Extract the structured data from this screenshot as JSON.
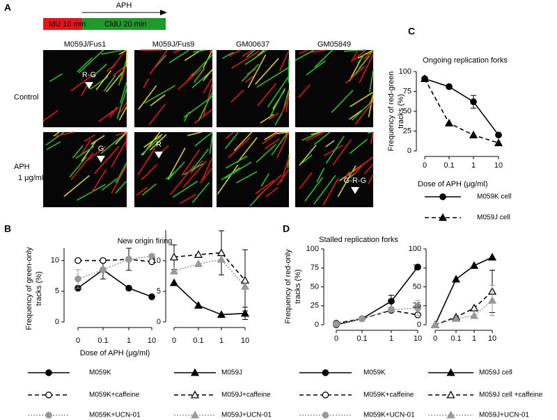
{
  "figure": {
    "panels": [
      "A",
      "B",
      "C",
      "D"
    ],
    "protocol": {
      "first": "IdU 10 min",
      "second": "CldU 20 min",
      "drug": "APH"
    },
    "columns": [
      "M059J/Fus1",
      "M059J/Fus9",
      "GM00637",
      "GM05849"
    ],
    "rows": [
      "Control",
      "APH",
      "1 μg/ml"
    ],
    "annotations": [
      "R-G",
      "G",
      "R",
      "G-R-G"
    ]
  },
  "chart_data": [
    {
      "type": "line",
      "title": "Ongoing replication forks",
      "ylabel": [
        "Frequency of red-green",
        "tracks (%)"
      ],
      "xlabel": "Dose of APH (μg/ml)",
      "categories": [
        "0",
        "0.1",
        "1",
        "10"
      ],
      "ylim": [
        0,
        100
      ],
      "yticks": [
        0,
        25,
        50,
        75,
        100
      ],
      "series": [
        {
          "name": "M059K cell",
          "color": "#000000",
          "marker": "circle",
          "filled": true,
          "dash": "solid",
          "values": [
            91,
            81,
            62,
            20
          ],
          "errors": [
            null,
            null,
            8,
            null
          ]
        },
        {
          "name": "M059J cell",
          "color": "#000000",
          "marker": "triangle",
          "filled": true,
          "dash": "dashed",
          "values": [
            91,
            35,
            20,
            10
          ],
          "errors": [
            null,
            null,
            null,
            null
          ]
        }
      ]
    },
    {
      "type": "line",
      "title": "New origin firing",
      "ylabel": [
        "Frequency of green-only",
        "tracks (%)"
      ],
      "xlabel": "Dose of APH (μg/ml)",
      "categories": [
        "0",
        "0.1",
        "1",
        "10"
      ],
      "ylim": [
        0,
        12
      ],
      "yticks": [
        0,
        5,
        10
      ],
      "series": [
        {
          "name": "M059K",
          "color": "#000000",
          "marker": "circle",
          "filled": true,
          "dash": "solid",
          "values": [
            5.5,
            8.5,
            5.5,
            4.1
          ],
          "errors": [
            null,
            1.5,
            null,
            null
          ]
        },
        {
          "name": "M059K+caffeine",
          "color": "#000000",
          "marker": "circle",
          "filled": false,
          "dash": "dashed",
          "values": [
            10,
            10,
            10.2,
            9.8
          ],
          "errors": [
            null,
            null,
            1.8,
            null
          ]
        },
        {
          "name": "M059K+UCN-01",
          "color": "#999999",
          "marker": "circle",
          "filled": true,
          "dash": "dotted",
          "values": [
            7,
            8.5,
            10.2,
            10.7
          ],
          "errors": [
            1.5,
            null,
            null,
            null
          ]
        }
      ]
    },
    {
      "type": "line",
      "categories": [
        "0",
        "0.1",
        "1",
        "10"
      ],
      "ylim": [
        0,
        15
      ],
      "yticks": [
        0,
        5,
        10
      ],
      "series": [
        {
          "name": "M059J",
          "color": "#000000",
          "marker": "triangle",
          "filled": true,
          "dash": "solid",
          "values": [
            6.4,
            2.7,
            1.2,
            1.4
          ],
          "errors": [
            null,
            null,
            null,
            1
          ]
        },
        {
          "name": "M059J+caffeine",
          "color": "#000000",
          "marker": "triangle",
          "filled": false,
          "dash": "dashed",
          "values": [
            10.6,
            11,
            11.3,
            6.8
          ],
          "errors": [
            2,
            null,
            3.6,
            5
          ]
        },
        {
          "name": "M059J+UCN-01",
          "color": "#999999",
          "marker": "triangle",
          "filled": true,
          "dash": "dotted",
          "values": [
            8.3,
            9.5,
            10.2,
            5.8
          ],
          "errors": [
            null,
            null,
            null,
            null
          ]
        }
      ]
    },
    {
      "type": "line",
      "title": "Stalled replication forks",
      "ylabel": [
        "Frequency of red-only",
        "tracks (%)"
      ],
      "categories": [
        "0",
        "0.1",
        "1",
        "10"
      ],
      "ylim": [
        0,
        100
      ],
      "yticks": [
        0,
        25,
        50,
        75,
        100
      ],
      "series": [
        {
          "name": "M059K",
          "color": "#000000",
          "marker": "circle",
          "filled": true,
          "dash": "solid",
          "values": [
            0,
            8,
            31,
            76
          ],
          "errors": [
            null,
            null,
            8,
            null
          ]
        },
        {
          "name": "M059K+caffeine",
          "color": "#000000",
          "marker": "circle",
          "filled": false,
          "dash": "dashed",
          "values": [
            2,
            8,
            19,
            13
          ],
          "errors": [
            null,
            null,
            null,
            null
          ]
        },
        {
          "name": "M059K+UCN-01",
          "color": "#999999",
          "marker": "circle",
          "filled": true,
          "dash": "dotted",
          "values": [
            1,
            8,
            20,
            22
          ],
          "errors": [
            null,
            null,
            null,
            10
          ]
        }
      ]
    },
    {
      "type": "line",
      "categories": [
        "0",
        "0.1",
        "1",
        "10"
      ],
      "ylim": [
        0,
        100
      ],
      "yticks": [
        0,
        25,
        50,
        75,
        100
      ],
      "series": [
        {
          "name": "M059J cell",
          "color": "#000000",
          "marker": "triangle",
          "filled": true,
          "dash": "solid",
          "values": [
            0,
            60,
            78,
            89
          ],
          "errors": [
            null,
            null,
            null,
            null
          ]
        },
        {
          "name": "M059J cell +caffeine",
          "color": "#000000",
          "marker": "triangle",
          "filled": false,
          "dash": "dashed",
          "values": [
            0,
            10,
            22,
            44
          ],
          "errors": [
            null,
            null,
            null,
            28
          ]
        },
        {
          "name": "M059J+UCN-01",
          "color": "#999999",
          "marker": "triangle",
          "filled": true,
          "dash": "dotted",
          "values": [
            0,
            8,
            12,
            32
          ],
          "errors": [
            null,
            null,
            null,
            20
          ]
        }
      ]
    }
  ]
}
